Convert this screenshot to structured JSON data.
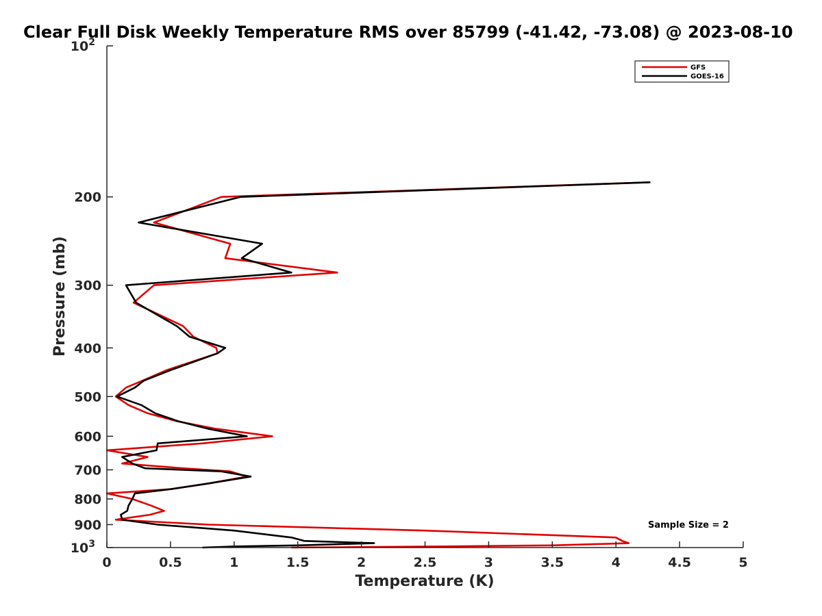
{
  "chart_data": {
    "type": "line",
    "title": "Clear Full Disk Weekly Temperature RMS over 85799 (-41.42, -73.08) @ 2023-08-10",
    "xlabel": "Temperature (K)",
    "ylabel": "Pressure (mb)",
    "xlim": [
      0,
      5
    ],
    "ylim": [
      100,
      1000
    ],
    "y_scale": "log",
    "y_reversed": true,
    "grid": false,
    "legend_position": "top-right",
    "x_ticks": [
      {
        "value": 0,
        "label": "0"
      },
      {
        "value": 0.5,
        "label": "0.5"
      },
      {
        "value": 1,
        "label": "1"
      },
      {
        "value": 1.5,
        "label": "1.5"
      },
      {
        "value": 2,
        "label": "2"
      },
      {
        "value": 2.5,
        "label": "2.5"
      },
      {
        "value": 3,
        "label": "3"
      },
      {
        "value": 3.5,
        "label": "3.5"
      },
      {
        "value": 4,
        "label": "4"
      },
      {
        "value": 4.5,
        "label": "4.5"
      },
      {
        "value": 5,
        "label": "5"
      }
    ],
    "y_ticks": [
      {
        "value": 100,
        "label": "10",
        "sup": "2"
      },
      {
        "value": 200,
        "label": "200",
        "sup": ""
      },
      {
        "value": 300,
        "label": "300",
        "sup": ""
      },
      {
        "value": 400,
        "label": "400",
        "sup": ""
      },
      {
        "value": 500,
        "label": "500",
        "sup": ""
      },
      {
        "value": 600,
        "label": "600",
        "sup": ""
      },
      {
        "value": 700,
        "label": "700",
        "sup": ""
      },
      {
        "value": 800,
        "label": "800",
        "sup": ""
      },
      {
        "value": 900,
        "label": "900",
        "sup": ""
      },
      {
        "value": 1000,
        "label": "10",
        "sup": "3"
      }
    ],
    "series": [
      {
        "name": "GFS",
        "color": "#e00000",
        "points": [
          [
            4.27,
            187
          ],
          [
            0.9,
            200
          ],
          [
            0.37,
            225
          ],
          [
            0.97,
            248
          ],
          [
            0.93,
            265
          ],
          [
            1.81,
            283
          ],
          [
            0.37,
            300
          ],
          [
            0.21,
            325
          ],
          [
            0.6,
            362
          ],
          [
            0.68,
            380
          ],
          [
            0.86,
            400
          ],
          [
            0.87,
            410
          ],
          [
            0.47,
            443
          ],
          [
            0.28,
            465
          ],
          [
            0.15,
            480
          ],
          [
            0.07,
            500
          ],
          [
            0.17,
            520
          ],
          [
            0.32,
            540
          ],
          [
            0.55,
            560
          ],
          [
            0.86,
            580
          ],
          [
            1.3,
            600
          ],
          [
            0.75,
            620
          ],
          [
            0.0,
            640
          ],
          [
            0.32,
            660
          ],
          [
            0.12,
            680
          ],
          [
            0.6,
            695
          ],
          [
            0.97,
            705
          ],
          [
            1.1,
            722
          ],
          [
            0.8,
            745
          ],
          [
            0.5,
            765
          ],
          [
            0.0,
            780
          ],
          [
            0.2,
            800
          ],
          [
            0.35,
            825
          ],
          [
            0.45,
            845
          ],
          [
            0.34,
            860
          ],
          [
            0.07,
            880
          ],
          [
            0.8,
            900
          ],
          [
            2.5,
            925
          ],
          [
            4.0,
            955
          ],
          [
            4.05,
            970
          ],
          [
            4.1,
            980
          ],
          [
            3.8,
            985
          ],
          [
            3.5,
            990
          ],
          [
            2.6,
            995
          ],
          [
            1.45,
            1000
          ]
        ]
      },
      {
        "name": "GOES-16",
        "color": "#000000",
        "points": [
          [
            4.27,
            187
          ],
          [
            1.05,
            200
          ],
          [
            0.25,
            225
          ],
          [
            1.22,
            248
          ],
          [
            1.06,
            265
          ],
          [
            1.45,
            283
          ],
          [
            0.15,
            300
          ],
          [
            0.23,
            325
          ],
          [
            0.55,
            362
          ],
          [
            0.65,
            380
          ],
          [
            0.93,
            400
          ],
          [
            0.87,
            410
          ],
          [
            0.5,
            443
          ],
          [
            0.29,
            465
          ],
          [
            0.22,
            480
          ],
          [
            0.08,
            500
          ],
          [
            0.27,
            520
          ],
          [
            0.38,
            540
          ],
          [
            0.56,
            560
          ],
          [
            0.8,
            580
          ],
          [
            1.1,
            600
          ],
          [
            0.4,
            620
          ],
          [
            0.39,
            640
          ],
          [
            0.12,
            660
          ],
          [
            0.2,
            680
          ],
          [
            0.3,
            695
          ],
          [
            0.9,
            705
          ],
          [
            1.13,
            722
          ],
          [
            0.8,
            745
          ],
          [
            0.5,
            765
          ],
          [
            0.22,
            780
          ],
          [
            0.2,
            800
          ],
          [
            0.17,
            825
          ],
          [
            0.16,
            845
          ],
          [
            0.11,
            860
          ],
          [
            0.12,
            880
          ],
          [
            0.4,
            900
          ],
          [
            1.0,
            925
          ],
          [
            1.45,
            955
          ],
          [
            1.55,
            970
          ],
          [
            2.1,
            980
          ],
          [
            1.8,
            985
          ],
          [
            1.5,
            990
          ],
          [
            1.0,
            995
          ],
          [
            0.75,
            1000
          ]
        ]
      }
    ],
    "annotation": "Sample Size = 2"
  }
}
